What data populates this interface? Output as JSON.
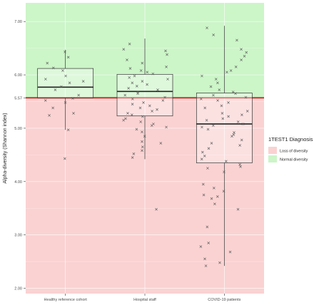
{
  "chart_data": {
    "type": "box",
    "xlabel": "",
    "ylabel": "Alpha-diversity (Shannon index)",
    "ylim": [
      1.9,
      7.35
    ],
    "y_ticks": [
      2.0,
      3.0,
      4.0,
      5.0,
      5.57,
      6.0,
      7.0
    ],
    "y_tick_labels": [
      "2.00",
      "3.00",
      "4.00",
      "5.00",
      "5.57",
      "6.00",
      "7.00"
    ],
    "threshold": 5.57,
    "threshold_color": "#c8322b",
    "regions": [
      {
        "name": "Normal diversity",
        "from": 5.57,
        "to": 7.35,
        "color": "#ccf5c8"
      },
      {
        "name": "Loss of diversity",
        "from": 1.9,
        "to": 5.57,
        "color": "#fad2d2"
      }
    ],
    "categories": [
      "Healthy reference cohort",
      "Hospital staff",
      "COVID-19 patients"
    ],
    "boxes": [
      {
        "category": "Healthy reference cohort",
        "whisker_low": 4.97,
        "q1": 5.57,
        "median": 5.77,
        "q3": 6.12,
        "whisker_high": 6.47
      },
      {
        "category": "Hospital staff",
        "whisker_low": 4.42,
        "q1": 5.23,
        "median": 5.69,
        "q3": 6.01,
        "whisker_high": 6.68
      },
      {
        "category": "COVID-19 patients",
        "whisker_low": 2.42,
        "q1": 4.35,
        "median": 5.08,
        "q3": 5.66,
        "whisker_high": 6.92
      }
    ],
    "points": [
      {
        "category": "Healthy reference cohort",
        "values": [
          6.43,
          6.33,
          6.22,
          6.13,
          6.08,
          5.98,
          5.92,
          5.88,
          5.85,
          5.78,
          5.72,
          5.62,
          5.56,
          5.52,
          5.48,
          5.38,
          5.28,
          5.24,
          4.97,
          4.43
        ]
      },
      {
        "category": "Hospital staff",
        "values": [
          6.58,
          6.48,
          6.45,
          6.38,
          6.28,
          6.22,
          6.15,
          6.12,
          6.08,
          6.05,
          6.02,
          5.98,
          5.95,
          5.92,
          5.88,
          5.85,
          5.82,
          5.79,
          5.75,
          5.72,
          5.68,
          5.65,
          5.62,
          5.58,
          5.55,
          5.52,
          5.48,
          5.45,
          5.42,
          5.38,
          5.35,
          5.32,
          5.28,
          5.25,
          5.22,
          5.18,
          5.15,
          5.12,
          5.08,
          5.05,
          5.02,
          4.98,
          4.93,
          4.85,
          4.75,
          4.72,
          4.65,
          4.58,
          4.52,
          4.45,
          3.48
        ]
      },
      {
        "category": "COVID-19 patients",
        "values": [
          6.88,
          6.75,
          6.65,
          6.48,
          6.42,
          6.35,
          6.28,
          6.15,
          6.08,
          6.05,
          5.98,
          5.92,
          5.85,
          5.78,
          5.72,
          5.68,
          5.65,
          5.62,
          5.58,
          5.55,
          5.52,
          5.48,
          5.42,
          5.38,
          5.32,
          5.28,
          5.25,
          5.22,
          5.18,
          5.15,
          5.12,
          5.08,
          5.05,
          5.02,
          4.98,
          4.92,
          4.88,
          4.85,
          4.78,
          4.72,
          4.68,
          4.62,
          4.55,
          4.48,
          4.42,
          4.38,
          4.32,
          4.28,
          4.25,
          4.18,
          3.95,
          3.88,
          3.82,
          3.75,
          3.72,
          3.68,
          3.58,
          3.48,
          3.15,
          2.85,
          2.78,
          2.68,
          2.55,
          2.48,
          2.42
        ]
      }
    ],
    "legend": {
      "title": "1TEST1 Diagnosis",
      "placement": "right",
      "items": [
        {
          "label": "Loss of diversity",
          "color": "#fad2d2"
        },
        {
          "label": "Normal diversity",
          "color": "#ccf5c8"
        }
      ]
    },
    "grid": true
  }
}
